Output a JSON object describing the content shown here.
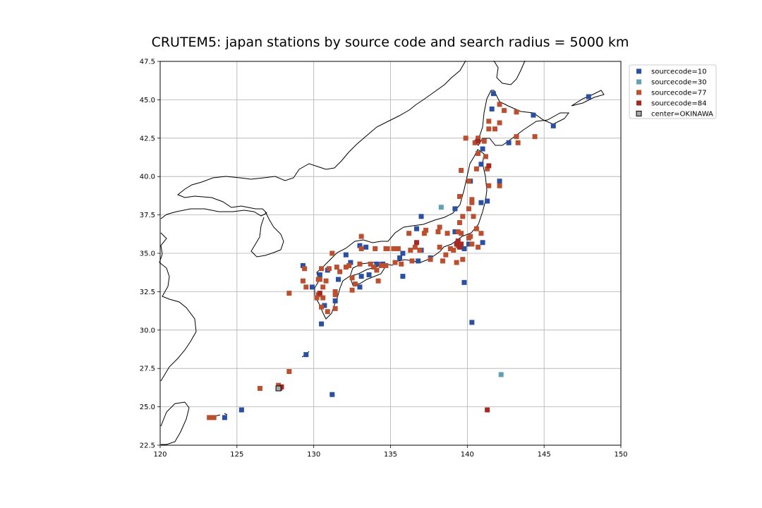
{
  "chart_data": {
    "type": "scatter",
    "title": "CRUTEM5: japan stations by source code and search radius = 5000 km",
    "xlabel": "",
    "ylabel": "",
    "xlim": [
      120,
      150
    ],
    "ylim": [
      22.5,
      47.5
    ],
    "x_ticks": [
      120,
      125,
      130,
      135,
      140,
      145,
      150
    ],
    "y_ticks": [
      22.5,
      25.0,
      27.5,
      30.0,
      32.5,
      35.0,
      37.5,
      40.0,
      42.5,
      45.0,
      47.5
    ],
    "x_tick_labels": [
      "120",
      "125",
      "130",
      "135",
      "140",
      "145",
      "150"
    ],
    "y_tick_labels": [
      "22.5",
      "25.0",
      "27.5",
      "30.0",
      "32.5",
      "35.0",
      "37.5",
      "40.0",
      "42.5",
      "45.0",
      "47.5"
    ],
    "grid": true,
    "legend_position": "upper-right-outside",
    "series": [
      {
        "name": "sourcecode=10",
        "color": "#2a4fa3",
        "points": [
          [
            141.7,
            45.4
          ],
          [
            141.6,
            44.4
          ],
          [
            144.3,
            44.0
          ],
          [
            145.6,
            43.3
          ],
          [
            147.9,
            45.2
          ],
          [
            142.7,
            42.2
          ],
          [
            141.0,
            41.8
          ],
          [
            140.9,
            40.8
          ],
          [
            140.2,
            39.7
          ],
          [
            142.1,
            39.7
          ],
          [
            141.3,
            38.4
          ],
          [
            140.9,
            38.3
          ],
          [
            139.2,
            37.9
          ],
          [
            137.0,
            37.4
          ],
          [
            136.7,
            36.6
          ],
          [
            139.2,
            36.4
          ],
          [
            140.1,
            35.6
          ],
          [
            141.0,
            35.7
          ],
          [
            139.8,
            35.3
          ],
          [
            137.0,
            35.2
          ],
          [
            135.8,
            35.0
          ],
          [
            135.6,
            34.7
          ],
          [
            136.8,
            34.5
          ],
          [
            137.6,
            34.7
          ],
          [
            135.8,
            33.5
          ],
          [
            134.5,
            34.3
          ],
          [
            134.1,
            34.3
          ],
          [
            133.6,
            33.6
          ],
          [
            133.1,
            33.5
          ],
          [
            133.4,
            35.4
          ],
          [
            133.0,
            35.5
          ],
          [
            132.1,
            34.9
          ],
          [
            132.4,
            34.4
          ],
          [
            131.6,
            33.3
          ],
          [
            131.4,
            31.9
          ],
          [
            130.5,
            30.4
          ],
          [
            129.9,
            32.8
          ],
          [
            129.3,
            34.2
          ],
          [
            130.9,
            33.9
          ],
          [
            133.0,
            32.8
          ],
          [
            130.7,
            31.6
          ],
          [
            129.5,
            28.4
          ],
          [
            131.2,
            25.8
          ],
          [
            125.3,
            24.8
          ],
          [
            124.2,
            24.3
          ],
          [
            139.8,
            33.1
          ],
          [
            140.3,
            30.5
          ],
          [
            130.4,
            33.6
          ]
        ]
      },
      {
        "name": "sourcecode=30",
        "color": "#62a0b4",
        "points": [
          [
            142.2,
            27.1
          ],
          [
            138.3,
            38.0
          ]
        ]
      },
      {
        "name": "sourcecode=77",
        "color": "#bb5030",
        "points": [
          [
            142.1,
            44.7
          ],
          [
            142.4,
            44.3
          ],
          [
            143.2,
            44.2
          ],
          [
            141.4,
            43.6
          ],
          [
            141.8,
            43.1
          ],
          [
            141.4,
            43.1
          ],
          [
            142.1,
            43.5
          ],
          [
            143.2,
            42.6
          ],
          [
            144.4,
            42.6
          ],
          [
            143.3,
            42.2
          ],
          [
            141.1,
            42.3
          ],
          [
            140.7,
            42.5
          ],
          [
            139.9,
            42.5
          ],
          [
            140.5,
            42.2
          ],
          [
            140.7,
            41.5
          ],
          [
            141.2,
            41.3
          ],
          [
            141.3,
            40.5
          ],
          [
            140.6,
            40.5
          ],
          [
            139.6,
            40.4
          ],
          [
            141.4,
            39.4
          ],
          [
            142.1,
            39.4
          ],
          [
            140.1,
            39.7
          ],
          [
            139.5,
            38.7
          ],
          [
            140.3,
            38.3
          ],
          [
            140.3,
            38.5
          ],
          [
            140.1,
            37.9
          ],
          [
            140.4,
            37.4
          ],
          [
            139.7,
            37.4
          ],
          [
            139.5,
            37.0
          ],
          [
            140.6,
            36.6
          ],
          [
            140.9,
            36.3
          ],
          [
            140.2,
            36.1
          ],
          [
            140.1,
            36.0
          ],
          [
            138.2,
            36.7
          ],
          [
            139.4,
            36.4
          ],
          [
            139.6,
            36.3
          ],
          [
            138.7,
            36.3
          ],
          [
            138.1,
            36.4
          ],
          [
            137.3,
            36.5
          ],
          [
            136.2,
            36.3
          ],
          [
            137.2,
            36.3
          ],
          [
            136.9,
            35.2
          ],
          [
            138.2,
            35.4
          ],
          [
            138.9,
            35.3
          ],
          [
            139.1,
            35.2
          ],
          [
            139.4,
            35.5
          ],
          [
            140.3,
            35.6
          ],
          [
            140.7,
            35.4
          ],
          [
            139.7,
            34.6
          ],
          [
            139.3,
            34.4
          ],
          [
            138.4,
            34.5
          ],
          [
            138.6,
            34.9
          ],
          [
            137.6,
            34.6
          ],
          [
            136.4,
            34.5
          ],
          [
            136.6,
            35.4
          ],
          [
            136.3,
            35.2
          ],
          [
            135.5,
            35.3
          ],
          [
            135.2,
            35.3
          ],
          [
            134.7,
            35.3
          ],
          [
            134.0,
            35.3
          ],
          [
            133.1,
            36.1
          ],
          [
            133.1,
            35.3
          ],
          [
            135.7,
            34.3
          ],
          [
            135.3,
            34.4
          ],
          [
            134.7,
            34.2
          ],
          [
            134.4,
            34.2
          ],
          [
            133.9,
            34.1
          ],
          [
            133.7,
            34.3
          ],
          [
            133.0,
            34.3
          ],
          [
            134.1,
            33.9
          ],
          [
            134.2,
            33.2
          ],
          [
            132.7,
            33.0
          ],
          [
            132.5,
            33.4
          ],
          [
            132.5,
            32.6
          ],
          [
            131.7,
            33.8
          ],
          [
            131.5,
            34.1
          ],
          [
            131.0,
            34.0
          ],
          [
            130.5,
            34.0
          ],
          [
            130.3,
            33.3
          ],
          [
            130.4,
            33.3
          ],
          [
            130.8,
            33.2
          ],
          [
            130.6,
            32.8
          ],
          [
            130.3,
            32.3
          ],
          [
            130.2,
            32.1
          ],
          [
            130.6,
            32.1
          ],
          [
            130.5,
            31.5
          ],
          [
            130.9,
            31.2
          ],
          [
            131.4,
            31.4
          ],
          [
            131.4,
            32.3
          ],
          [
            131.4,
            32.5
          ],
          [
            131.2,
            35.0
          ],
          [
            129.4,
            34.0
          ],
          [
            129.5,
            32.8
          ],
          [
            129.3,
            33.2
          ],
          [
            128.4,
            32.4
          ],
          [
            128.4,
            27.3
          ],
          [
            126.5,
            26.2
          ],
          [
            127.7,
            26.4
          ],
          [
            127.8,
            26.2
          ],
          [
            123.2,
            24.3
          ],
          [
            123.5,
            24.3
          ],
          [
            132.3,
            34.2
          ],
          [
            132.1,
            34.1
          ],
          [
            134.8,
            35.3
          ]
        ]
      },
      {
        "name": "sourcecode=84",
        "color": "#a32a24",
        "points": [
          [
            141.4,
            40.7
          ],
          [
            140.7,
            42.3
          ],
          [
            139.4,
            35.8
          ],
          [
            139.6,
            35.6
          ],
          [
            139.3,
            35.6
          ],
          [
            139.5,
            35.4
          ],
          [
            136.7,
            35.7
          ],
          [
            130.4,
            32.4
          ],
          [
            127.9,
            26.3
          ],
          [
            141.3,
            24.8
          ]
        ]
      },
      {
        "name": "center=OKINAWA",
        "color": "#a8a8a8",
        "points": [
          [
            127.7,
            26.2
          ]
        ]
      }
    ]
  }
}
